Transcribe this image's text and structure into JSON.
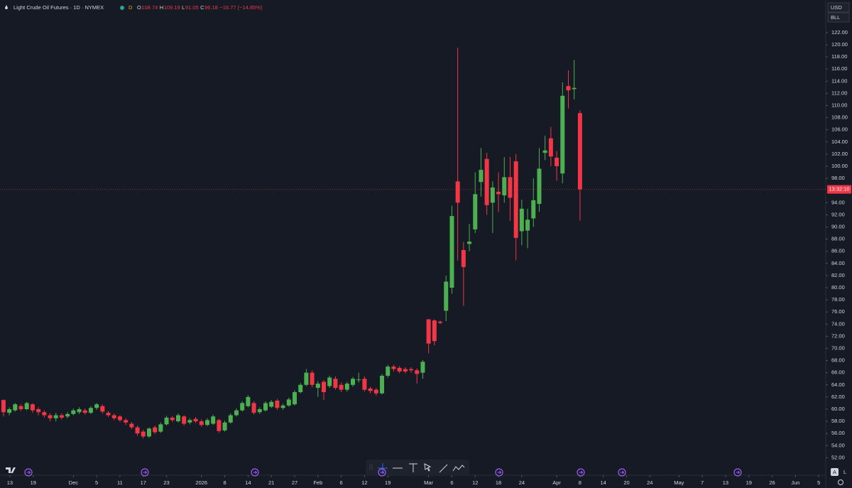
{
  "chart_data": {
    "type": "candlestick",
    "title": "Light Crude Oil Futures · 1D · NYMEX",
    "interval_badge": "D",
    "ohlc_labels": [
      "O",
      "H",
      "L",
      "C"
    ],
    "change_label": "−16.77 (−14.85%)",
    "currency": "USD",
    "unit": "BLL",
    "countdown": "13:32:10",
    "scale_buttons": [
      "A",
      "L"
    ],
    "up_color": "#4caf50",
    "down_color": "#f23645",
    "open": [
      61.5,
      59.4,
      59.8,
      60.5,
      60.0,
      60.8,
      60.0,
      59.5,
      59.0,
      58.5,
      59.0,
      58.8,
      59.2,
      59.5,
      59.8,
      59.4,
      60.2,
      60.5,
      59.4,
      59.0,
      58.8,
      58.2,
      57.6,
      57.0,
      56.3,
      55.5,
      57.0,
      56.3,
      57.5,
      58.6,
      58.0,
      58.8,
      57.8,
      58.4,
      58.0,
      57.4,
      57.6,
      58.2,
      56.5,
      57.8,
      59.0,
      59.8,
      60.5,
      61.0,
      59.5,
      59.8,
      60.4,
      61.4,
      60.2,
      60.6,
      60.8,
      62.8,
      64.0,
      66.0,
      63.5,
      64.5,
      63.8,
      65.0,
      64.0,
      63.2,
      64.0,
      64.8,
      65.0,
      63.4,
      63.2,
      62.6,
      65.5,
      67.0,
      66.8,
      66.6,
      66.6,
      66.4,
      66.0,
      74.8,
      74.6,
      74.4,
      76.2,
      80.0,
      97.5,
      86.2,
      87.2,
      89.6,
      97.4,
      101.2,
      94.0,
      95.8,
      95.2,
      98.2,
      100.8,
      89.3,
      89.4,
      91.4,
      93.8,
      102.2,
      104.6,
      101.4,
      98.8,
      113.2,
      112.7,
      108.74
    ],
    "high": [
      61.6,
      60.3,
      61.0,
      60.8,
      61.2,
      61.0,
      60.3,
      59.8,
      59.3,
      59.4,
      59.3,
      59.5,
      60.1,
      60.3,
      60.1,
      60.5,
      61.0,
      60.8,
      59.7,
      59.3,
      59.0,
      58.5,
      57.9,
      57.3,
      56.6,
      57.0,
      57.3,
      57.8,
      58.9,
      58.9,
      59.3,
      59.0,
      58.5,
      58.7,
      58.3,
      58.5,
      59.1,
      58.4,
      58.1,
      59.3,
      60.1,
      61.3,
      62.3,
      61.3,
      60.3,
      61.3,
      61.5,
      61.7,
      60.9,
      61.9,
      63.1,
      64.3,
      66.6,
      66.4,
      64.6,
      64.8,
      65.5,
      65.4,
      64.4,
      64.5,
      65.3,
      66.0,
      65.4,
      63.7,
      63.5,
      65.8,
      67.3,
      67.3,
      67.1,
      66.9,
      66.9,
      66.7,
      68.1,
      74.8,
      74.8,
      74.6,
      82.0,
      93.5,
      119.5,
      87.5,
      90.5,
      99.0,
      103.0,
      102.2,
      97.5,
      99.0,
      101.5,
      101.5,
      102.0,
      94.5,
      93.0,
      98.0,
      103.0,
      105.0,
      106.5,
      102.5,
      113.8,
      115.8,
      117.5,
      109.19
    ],
    "low": [
      58.8,
      59.0,
      59.6,
      59.7,
      59.8,
      59.4,
      59.0,
      58.6,
      58.0,
      58.0,
      58.3,
      58.5,
      59.0,
      59.2,
      59.1,
      59.2,
      59.9,
      59.3,
      58.7,
      58.2,
      57.9,
      57.4,
      56.7,
      55.6,
      55.2,
      55.3,
      55.9,
      56.1,
      57.3,
      57.9,
      57.8,
      57.3,
      57.5,
      57.7,
      57.1,
      57.2,
      57.4,
      56.1,
      56.3,
      57.6,
      58.8,
      59.6,
      60.3,
      59.1,
      59.2,
      59.6,
      60.2,
      59.9,
      59.9,
      60.4,
      60.6,
      62.6,
      63.8,
      63.6,
      62.0,
      61.5,
      63.5,
      63.2,
      62.8,
      62.9,
      63.7,
      64.4,
      62.9,
      62.6,
      62.2,
      62.4,
      65.2,
      66.2,
      65.9,
      65.9,
      66.0,
      64.2,
      65.0,
      69.2,
      70.5,
      74.0,
      74.5,
      79.0,
      84.5,
      77.0,
      86.0,
      89.0,
      95.0,
      92.0,
      89.0,
      92.5,
      94.0,
      91.0,
      84.5,
      87.0,
      86.5,
      90.0,
      92.5,
      101.0,
      100.0,
      97.6,
      97.2,
      109.5,
      111.0,
      91.05
    ],
    "close": [
      59.5,
      60.0,
      60.8,
      60.0,
      61.0,
      59.8,
      59.5,
      59.0,
      58.5,
      59.0,
      58.6,
      59.2,
      59.8,
      60.0,
      59.4,
      60.2,
      60.8,
      59.6,
      59.0,
      58.5,
      58.2,
      57.8,
      57.0,
      56.0,
      55.5,
      56.8,
      56.2,
      57.5,
      58.6,
      58.2,
      59.0,
      57.6,
      58.2,
      58.0,
      57.4,
      58.2,
      58.8,
      56.4,
      57.8,
      59.0,
      59.8,
      61.0,
      62.0,
      59.4,
      60.0,
      61.0,
      61.2,
      60.2,
      60.6,
      61.6,
      62.8,
      64.0,
      66.0,
      64.0,
      64.2,
      62.8,
      65.2,
      63.5,
      63.2,
      64.2,
      65.0,
      64.9,
      63.2,
      63.0,
      62.6,
      65.5,
      67.0,
      66.6,
      66.2,
      66.2,
      66.4,
      65.8,
      67.8,
      70.8,
      71.2,
      74.2,
      81.0,
      91.8,
      94.0,
      83.4,
      87.6,
      95.4,
      99.4,
      93.6,
      96.5,
      95.4,
      98.2,
      94.8,
      88.2,
      93.0,
      91.2,
      94.4,
      99.6,
      102.6,
      101.6,
      100.0,
      111.6,
      112.5,
      112.9,
      96.18
    ],
    "xlim": [
      -0.6,
      141.2
    ],
    "xticks": [
      {
        "value": 1.1,
        "label": "13"
      },
      {
        "value": 5.1,
        "label": "19"
      },
      {
        "value": 12,
        "label": "Dec"
      },
      {
        "value": 16,
        "label": "5"
      },
      {
        "value": 20,
        "label": "11"
      },
      {
        "value": 24,
        "label": "17"
      },
      {
        "value": 28,
        "label": "23"
      },
      {
        "value": 34,
        "label": "2026"
      },
      {
        "value": 38,
        "label": "8"
      },
      {
        "value": 42,
        "label": "14"
      },
      {
        "value": 46,
        "label": "21"
      },
      {
        "value": 50,
        "label": "27"
      },
      {
        "value": 54,
        "label": "Feb"
      },
      {
        "value": 58,
        "label": "6"
      },
      {
        "value": 62,
        "label": "12"
      },
      {
        "value": 66,
        "label": "19"
      },
      {
        "value": 73,
        "label": "Mar"
      },
      {
        "value": 77,
        "label": "6"
      },
      {
        "value": 81,
        "label": "12"
      },
      {
        "value": 85,
        "label": "18"
      },
      {
        "value": 89,
        "label": "24"
      },
      {
        "value": 95,
        "label": "Apr"
      },
      {
        "value": 99,
        "label": "8"
      },
      {
        "value": 103,
        "label": "14"
      },
      {
        "value": 107,
        "label": "20"
      },
      {
        "value": 111,
        "label": "24"
      },
      {
        "value": 116,
        "label": "May"
      },
      {
        "value": 120,
        "label": "7"
      },
      {
        "value": 124,
        "label": "13"
      },
      {
        "value": 128,
        "label": "19"
      },
      {
        "value": 132,
        "label": "26"
      },
      {
        "value": 136,
        "label": "Jun"
      },
      {
        "value": 140,
        "label": "5"
      }
    ],
    "ylim": [
      49.94,
      127.37
    ],
    "yticks": [
      {
        "value": 52,
        "label": "52.00"
      },
      {
        "value": 54,
        "label": "54.00"
      },
      {
        "value": 56,
        "label": "56.00"
      },
      {
        "value": 58,
        "label": "58.00"
      },
      {
        "value": 60,
        "label": "60.00"
      },
      {
        "value": 62,
        "label": "62.00"
      },
      {
        "value": 64,
        "label": "64.00"
      },
      {
        "value": 66,
        "label": "66.00"
      },
      {
        "value": 68,
        "label": "68.00"
      },
      {
        "value": 70,
        "label": "70.00"
      },
      {
        "value": 72,
        "label": "72.00"
      },
      {
        "value": 74,
        "label": "74.00"
      },
      {
        "value": 76,
        "label": "76.00"
      },
      {
        "value": 78,
        "label": "78.00"
      },
      {
        "value": 80,
        "label": "80.00"
      },
      {
        "value": 82,
        "label": "82.00"
      },
      {
        "value": 84,
        "label": "84.00"
      },
      {
        "value": 86,
        "label": "86.00"
      },
      {
        "value": 88,
        "label": "88.00"
      },
      {
        "value": 90,
        "label": "90.00"
      },
      {
        "value": 92,
        "label": "92.00"
      },
      {
        "value": 94,
        "label": "94.00"
      },
      {
        "value": 98,
        "label": "98.00"
      },
      {
        "value": 100,
        "label": "100.00"
      },
      {
        "value": 102,
        "label": "102.00"
      },
      {
        "value": 104,
        "label": "104.00"
      },
      {
        "value": 106,
        "label": "106.00"
      },
      {
        "value": 108,
        "label": "108.00"
      },
      {
        "value": 110,
        "label": "110.00"
      },
      {
        "value": 112,
        "label": "112.00"
      },
      {
        "value": 114,
        "label": "114.00"
      },
      {
        "value": 116,
        "label": "116.00"
      },
      {
        "value": 118,
        "label": "118.00"
      },
      {
        "value": 120,
        "label": "120.00"
      },
      {
        "value": 122,
        "label": "122.00"
      }
    ]
  }
}
